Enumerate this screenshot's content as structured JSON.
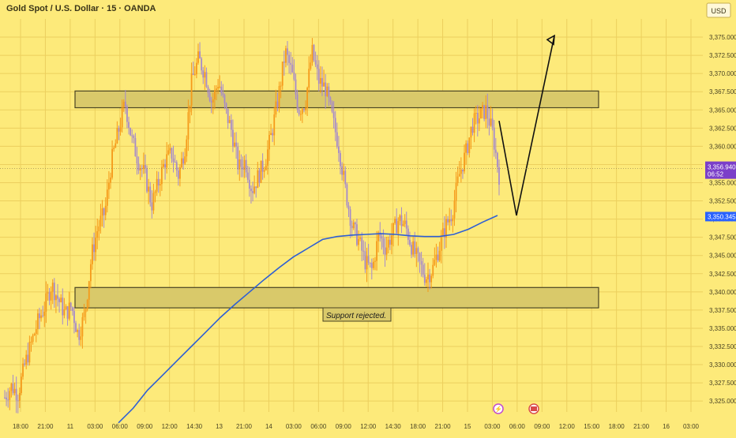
{
  "header": {
    "symbol_title": "Gold Spot / U.S. Dollar · 15 · OANDA",
    "currency": "USD"
  },
  "colors": {
    "background": "#fdea7a",
    "grid": "#eccf5e",
    "candle_up": "#f59a1a",
    "candle_down": "#a58acb",
    "sma": "#2e5fd4",
    "zone_fill": "#d9c96a",
    "zone_border": "#4a4423",
    "forecast": "#111111",
    "last_price_bg": "#7b3fc9",
    "sma_label_bg": "#2962ff",
    "axis_text": "#4a4423"
  },
  "icons": {
    "event_1": "lightning-icon",
    "event_2": "us-flag-icon"
  },
  "chart_data": {
    "type": "candlestick",
    "title": "Gold Spot / U.S. Dollar · 15 · OANDA",
    "ylabel": "USD",
    "ylim": [
      3323.5,
      3377.5
    ],
    "x_tick_labels": [
      "18:00",
      "21:00",
      "11",
      "03:00",
      "06:00",
      "09:00",
      "12:00",
      "14:30",
      "13",
      "21:00",
      "14",
      "03:00",
      "06:00",
      "09:00",
      "12:00",
      "14:30",
      "18:00",
      "21:00",
      "15",
      "03:00",
      "06:00",
      "09:00",
      "12:00",
      "15:00",
      "18:00",
      "21:00",
      "16",
      "03:00"
    ],
    "y_tick_labels": [
      "3,375.000",
      "3,372.500",
      "3,370.000",
      "3,367.500",
      "3,365.000",
      "3,362.500",
      "3,360.000",
      "3,357.500",
      "3,355.000",
      "3,352.500",
      "3,350.000",
      "3,347.500",
      "3,345.000",
      "3,342.500",
      "3,340.000",
      "3,337.500",
      "3,335.000",
      "3,332.500",
      "3,330.000",
      "3,327.500",
      "3,325.000"
    ],
    "price_path": [
      3325.5,
      3327,
      3326,
      3330,
      3333,
      3336,
      3338,
      3341,
      3339,
      3337,
      3338,
      3334,
      3337,
      3345,
      3349,
      3351,
      3358,
      3362,
      3366,
      3361,
      3358,
      3356,
      3352,
      3355,
      3358,
      3359,
      3356,
      3360,
      3369,
      3372,
      3370,
      3366,
      3369,
      3365,
      3362,
      3357,
      3358,
      3354,
      3356,
      3358,
      3362,
      3367,
      3373,
      3370,
      3365,
      3366,
      3373,
      3369,
      3368,
      3364,
      3360,
      3354,
      3349,
      3347,
      3344,
      3343,
      3348,
      3346,
      3348,
      3350,
      3349,
      3346,
      3344,
      3342,
      3343,
      3346,
      3349,
      3351,
      3356,
      3359,
      3363,
      3364,
      3365,
      3362,
      3356
    ],
    "sma_values": [
      3322,
      3324,
      3326.5,
      3328.5,
      3330.5,
      3332.5,
      3334.5,
      3336.5,
      3338.3,
      3340,
      3341.7,
      3343.3,
      3344.8,
      3346,
      3347.2,
      3347.6,
      3347.8,
      3347.9,
      3348.0,
      3347.9,
      3347.7,
      3347.6,
      3347.6,
      3347.9,
      3348.6,
      3349.6,
      3350.5
    ],
    "zones": [
      {
        "name": "resistance",
        "low": 3365.3,
        "high": 3367.6
      },
      {
        "name": "support",
        "low": 3337.8,
        "high": 3340.6
      }
    ],
    "forecast_path": [
      3363.5,
      3350.5,
      3375.2
    ],
    "last_price": {
      "value": "3,356.940",
      "countdown": "06:52"
    },
    "sma_last": "3,350.345",
    "annotation": "Support rejected."
  }
}
